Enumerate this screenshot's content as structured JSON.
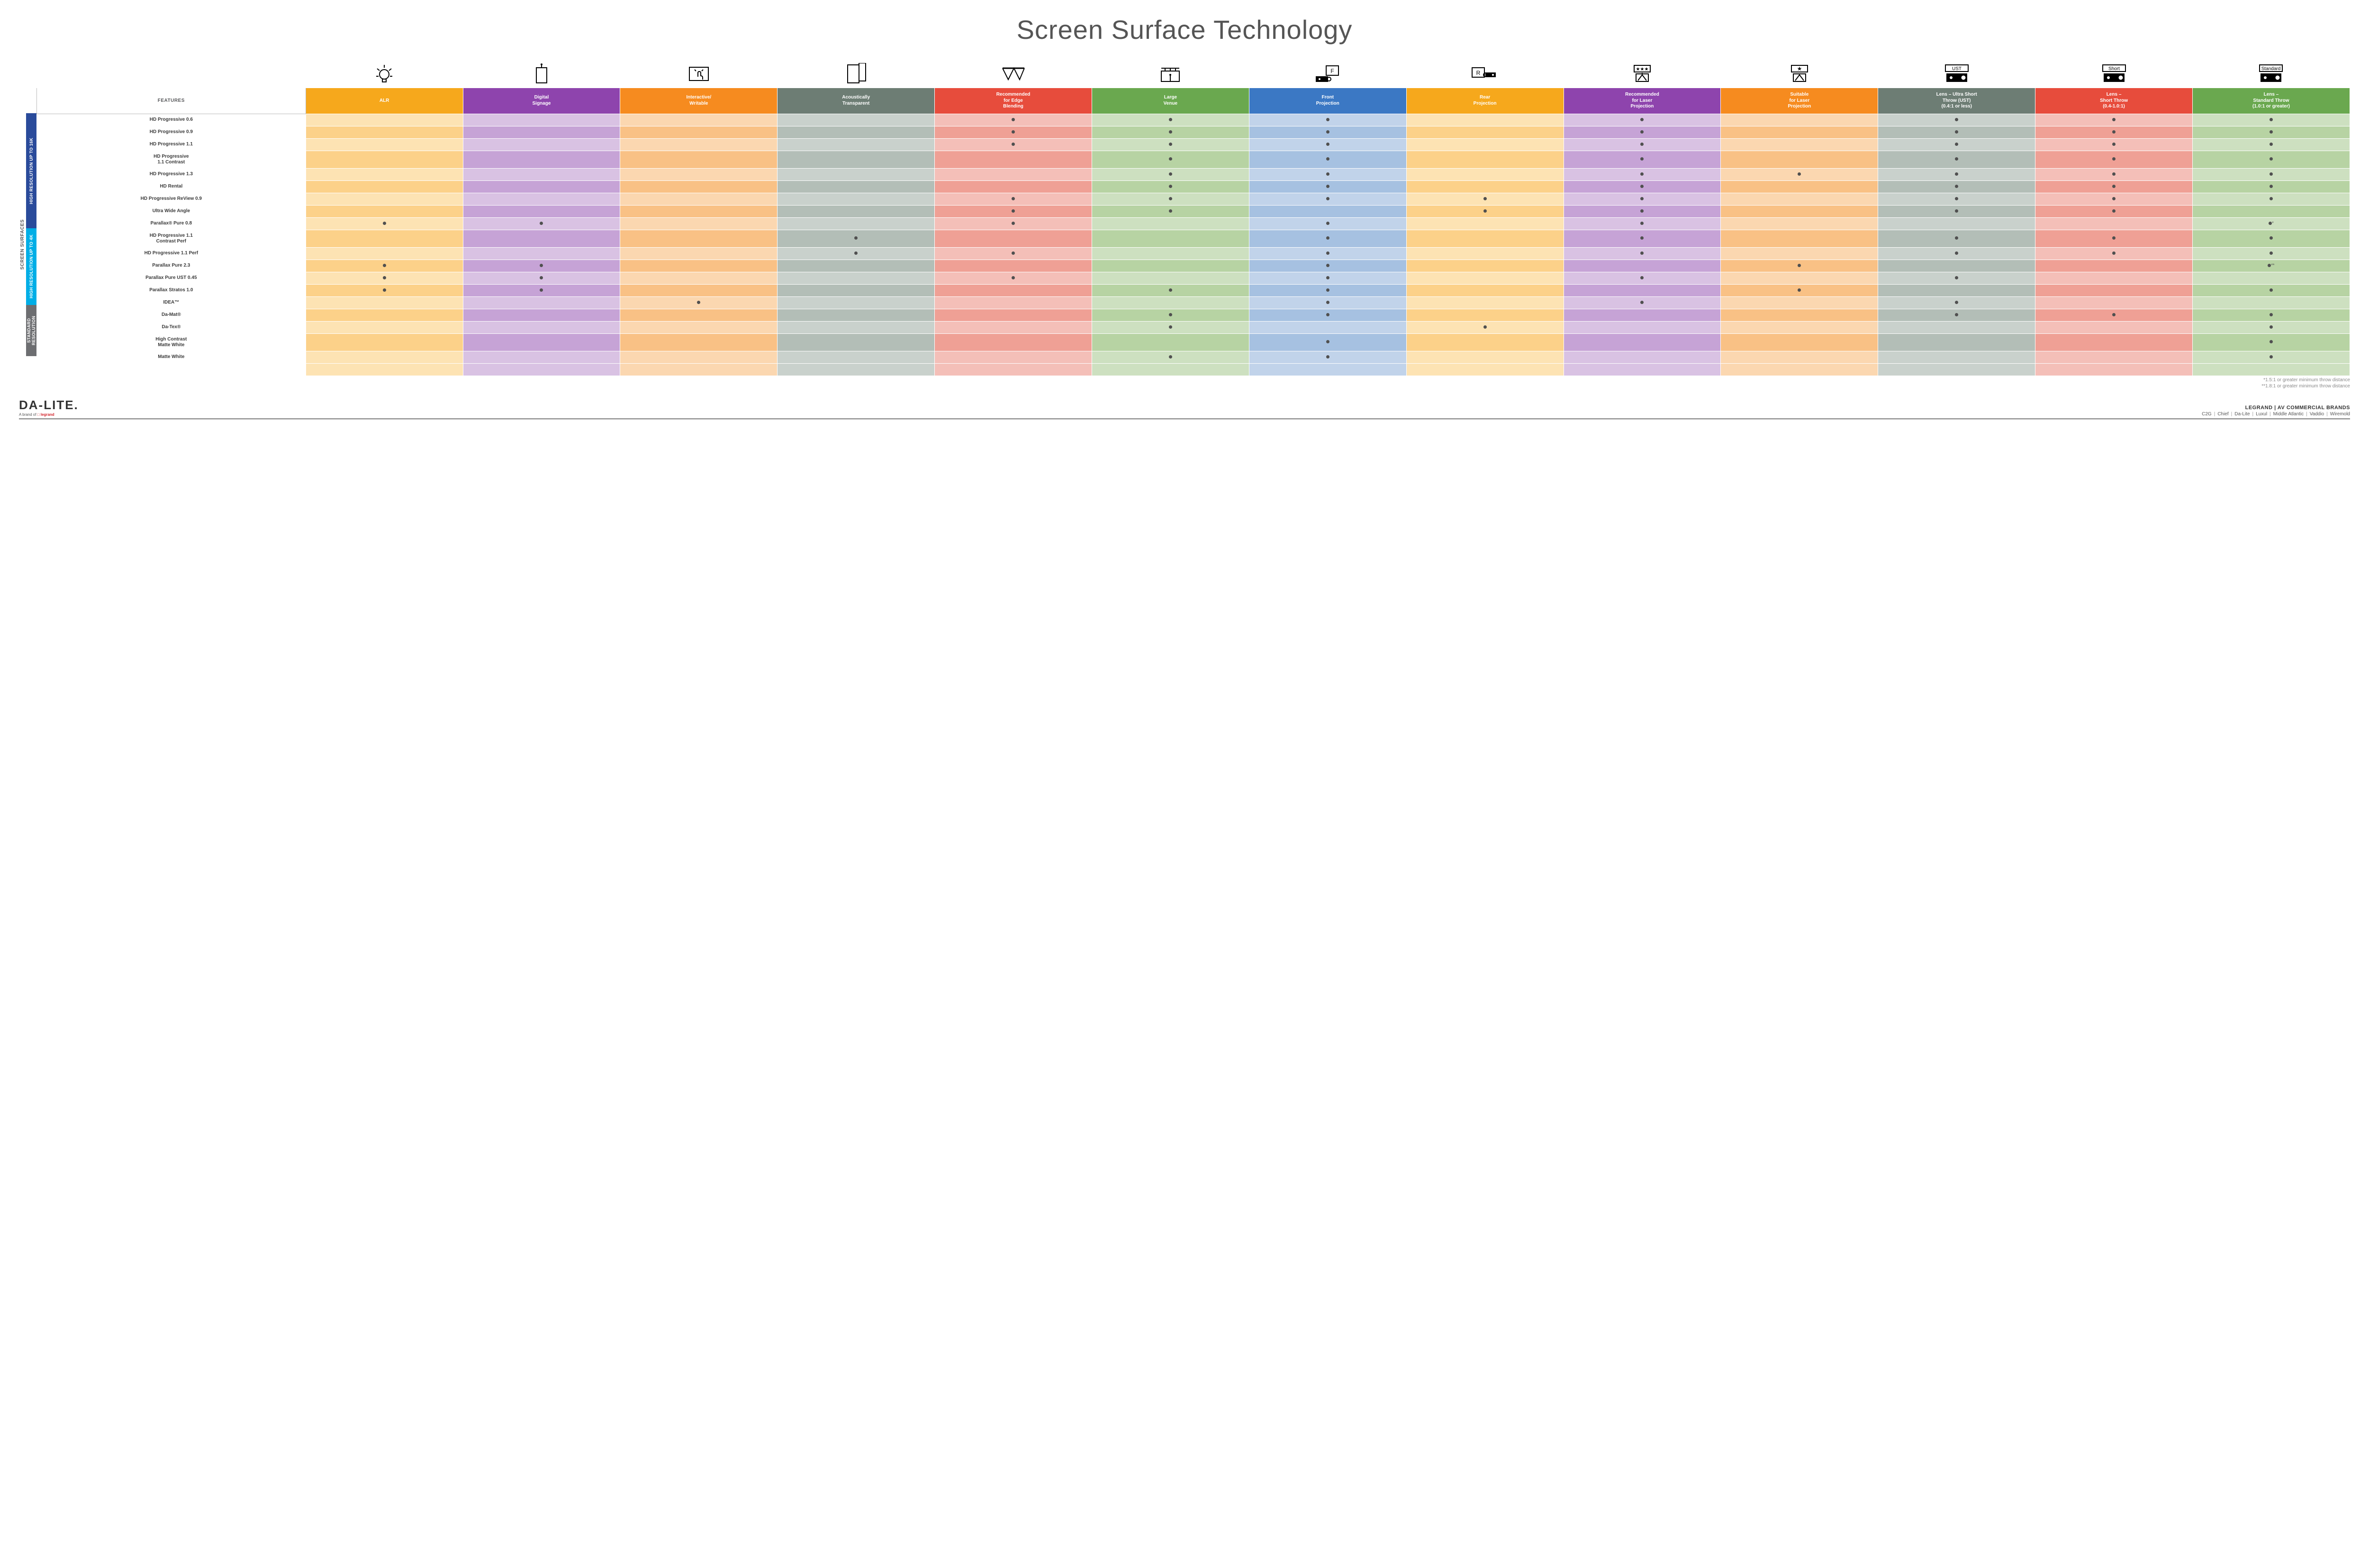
{
  "title": "Screen Surface Technology",
  "background_color": "#ffffff",
  "dot_color": "#505050",
  "groups": [
    {
      "label": "HIGH RESOLUTION UP TO 16K",
      "color": "#2a4b9b",
      "rows": 9
    },
    {
      "label": "HIGH RESOLUTION UP TO 4K",
      "color": "#00aee6",
      "rows": 6
    },
    {
      "label": "STANDARD RESOLUTION",
      "color": "#6d6e71",
      "rows": 4
    }
  ],
  "side_label": "SCREEN SURFACES",
  "columns": [
    {
      "key": "features",
      "label": "FEATURES",
      "header_bg": "#ffffff",
      "shade_a": "#ffffff",
      "shade_b": "#ffffff",
      "icon": ""
    },
    {
      "key": "alr",
      "label": "ALR",
      "header_bg": "#f6a81c",
      "shade_a": "#fde3b3",
      "shade_b": "#fcd189",
      "icon": "bulb"
    },
    {
      "key": "signage",
      "label": "Digital\nSignage",
      "header_bg": "#8e44ad",
      "shade_a": "#d9c2e3",
      "shade_b": "#c6a3d6",
      "icon": "signage"
    },
    {
      "key": "interactive",
      "label": "Interactive/\nWritable",
      "header_bg": "#f68b1f",
      "shade_a": "#fbd7b0",
      "shade_b": "#f9c185",
      "icon": "touch"
    },
    {
      "key": "acoustic",
      "label": "Acoustically\nTransparent",
      "header_bg": "#6d7d74",
      "shade_a": "#c9d1cc",
      "shade_b": "#b3beb7",
      "icon": "speaker"
    },
    {
      "key": "edge",
      "label": "Recommended\nfor Edge\nBlending",
      "header_bg": "#e74c3c",
      "shade_a": "#f4bfb8",
      "shade_b": "#efa095",
      "icon": "blend"
    },
    {
      "key": "venue",
      "label": "Large\nVenue",
      "header_bg": "#6aa84f",
      "shade_a": "#cde0c0",
      "shade_b": "#b7d3a3",
      "icon": "venue"
    },
    {
      "key": "front",
      "label": "Front\nProjection",
      "header_bg": "#3b78c4",
      "shade_a": "#c1d3ea",
      "shade_b": "#a6c1e1",
      "icon": "front"
    },
    {
      "key": "rear",
      "label": "Rear\nProjection",
      "header_bg": "#f6a81c",
      "shade_a": "#fde3b3",
      "shade_b": "#fcd189",
      "icon": "rear"
    },
    {
      "key": "reclaser",
      "label": "Recommended\nfor Laser\nProjection",
      "header_bg": "#8e44ad",
      "shade_a": "#d9c2e3",
      "shade_b": "#c6a3d6",
      "icon": "laser1"
    },
    {
      "key": "suitlaser",
      "label": "Suitable\nfor Laser\nProjection",
      "header_bg": "#f68b1f",
      "shade_a": "#fbd7b0",
      "shade_b": "#f9c185",
      "icon": "laser2"
    },
    {
      "key": "ust",
      "label": "Lens – Ultra Short\nThrow (UST)\n(0.4:1 or less)",
      "header_bg": "#6d7d74",
      "shade_a": "#c9d1cc",
      "shade_b": "#b3beb7",
      "icon": "ust"
    },
    {
      "key": "short",
      "label": "Lens –\nShort Throw\n(0.4-1.0:1)",
      "header_bg": "#e74c3c",
      "shade_a": "#f4bfb8",
      "shade_b": "#efa095",
      "icon": "short"
    },
    {
      "key": "std",
      "label": "Lens –\nStandard Throw\n(1.0:1 or greater)",
      "header_bg": "#6aa84f",
      "shade_a": "#cde0c0",
      "shade_b": "#b7d3a3",
      "icon": "stdthrow"
    }
  ],
  "rows": [
    {
      "label": "HD Progressive 0.6",
      "dots": [
        "edge",
        "venue",
        "front",
        "reclaser",
        "ust",
        "short",
        "std"
      ]
    },
    {
      "label": "HD Progressive 0.9",
      "dots": [
        "edge",
        "venue",
        "front",
        "reclaser",
        "ust",
        "short",
        "std"
      ]
    },
    {
      "label": "HD Progressive 1.1",
      "dots": [
        "edge",
        "venue",
        "front",
        "reclaser",
        "ust",
        "short",
        "std"
      ]
    },
    {
      "label": "HD Progressive\n1.1 Contrast",
      "dots": [
        "venue",
        "front",
        "reclaser",
        "ust",
        "short",
        "std"
      ]
    },
    {
      "label": "HD Progressive 1.3",
      "dots": [
        "venue",
        "front",
        "reclaser",
        "suitlaser",
        "ust",
        "short",
        "std"
      ]
    },
    {
      "label": "HD Rental",
      "dots": [
        "venue",
        "front",
        "reclaser",
        "ust",
        "short",
        "std"
      ]
    },
    {
      "label": "HD Progressive ReView 0.9",
      "dots": [
        "edge",
        "venue",
        "front",
        "rear",
        "reclaser",
        "ust",
        "short",
        "std"
      ]
    },
    {
      "label": "Ultra Wide Angle",
      "dots": [
        "edge",
        "venue",
        "rear",
        "reclaser",
        "ust",
        "short"
      ]
    },
    {
      "label": "Parallax® Pure 0.8",
      "dots": [
        "alr",
        "signage",
        "edge",
        "front",
        "reclaser"
      ],
      "std_note": "*"
    },
    {
      "label": "HD Progressive 1.1\nContrast Perf",
      "dots": [
        "acoustic",
        "front",
        "reclaser",
        "ust",
        "short",
        "std"
      ]
    },
    {
      "label": "HD Progressive 1.1 Perf",
      "dots": [
        "acoustic",
        "edge",
        "front",
        "reclaser",
        "ust",
        "short",
        "std"
      ]
    },
    {
      "label": "Parallax Pure 2.3",
      "dots": [
        "alr",
        "signage",
        "front",
        "suitlaser"
      ],
      "std_note": "**"
    },
    {
      "label": "Parallax Pure UST 0.45",
      "dots": [
        "alr",
        "signage",
        "edge",
        "front",
        "reclaser",
        "ust"
      ]
    },
    {
      "label": "Parallax Stratos 1.0",
      "dots": [
        "alr",
        "signage",
        "venue",
        "front",
        "suitlaser",
        "std"
      ]
    },
    {
      "label": "IDEA™",
      "dots": [
        "interactive",
        "front",
        "reclaser",
        "ust"
      ]
    },
    {
      "label": "Da-Mat®",
      "dots": [
        "venue",
        "front",
        "ust",
        "short",
        "std"
      ]
    },
    {
      "label": "Da-Tex®",
      "dots": [
        "venue",
        "rear",
        "std"
      ]
    },
    {
      "label": "High Contrast\nMatte White",
      "dots": [
        "front",
        "std"
      ]
    },
    {
      "label": "Matte White",
      "dots": [
        "venue",
        "front",
        "std"
      ]
    }
  ],
  "footnotes": [
    "*1.5:1 or greater minimum throw distance",
    "**1.8:1 or greater minimum throw distance"
  ],
  "footer": {
    "logo_main": "DA-LITE.",
    "logo_sub_prefix": "A brand of ",
    "logo_sub_brand": "legrand",
    "brands_title": "LEGRAND | AV COMMERCIAL BRANDS",
    "brands": [
      "C2G",
      "Chief",
      "Da-Lite",
      "Luxul",
      "Middle Atlantic",
      "Vaddio",
      "Wiremold"
    ]
  }
}
